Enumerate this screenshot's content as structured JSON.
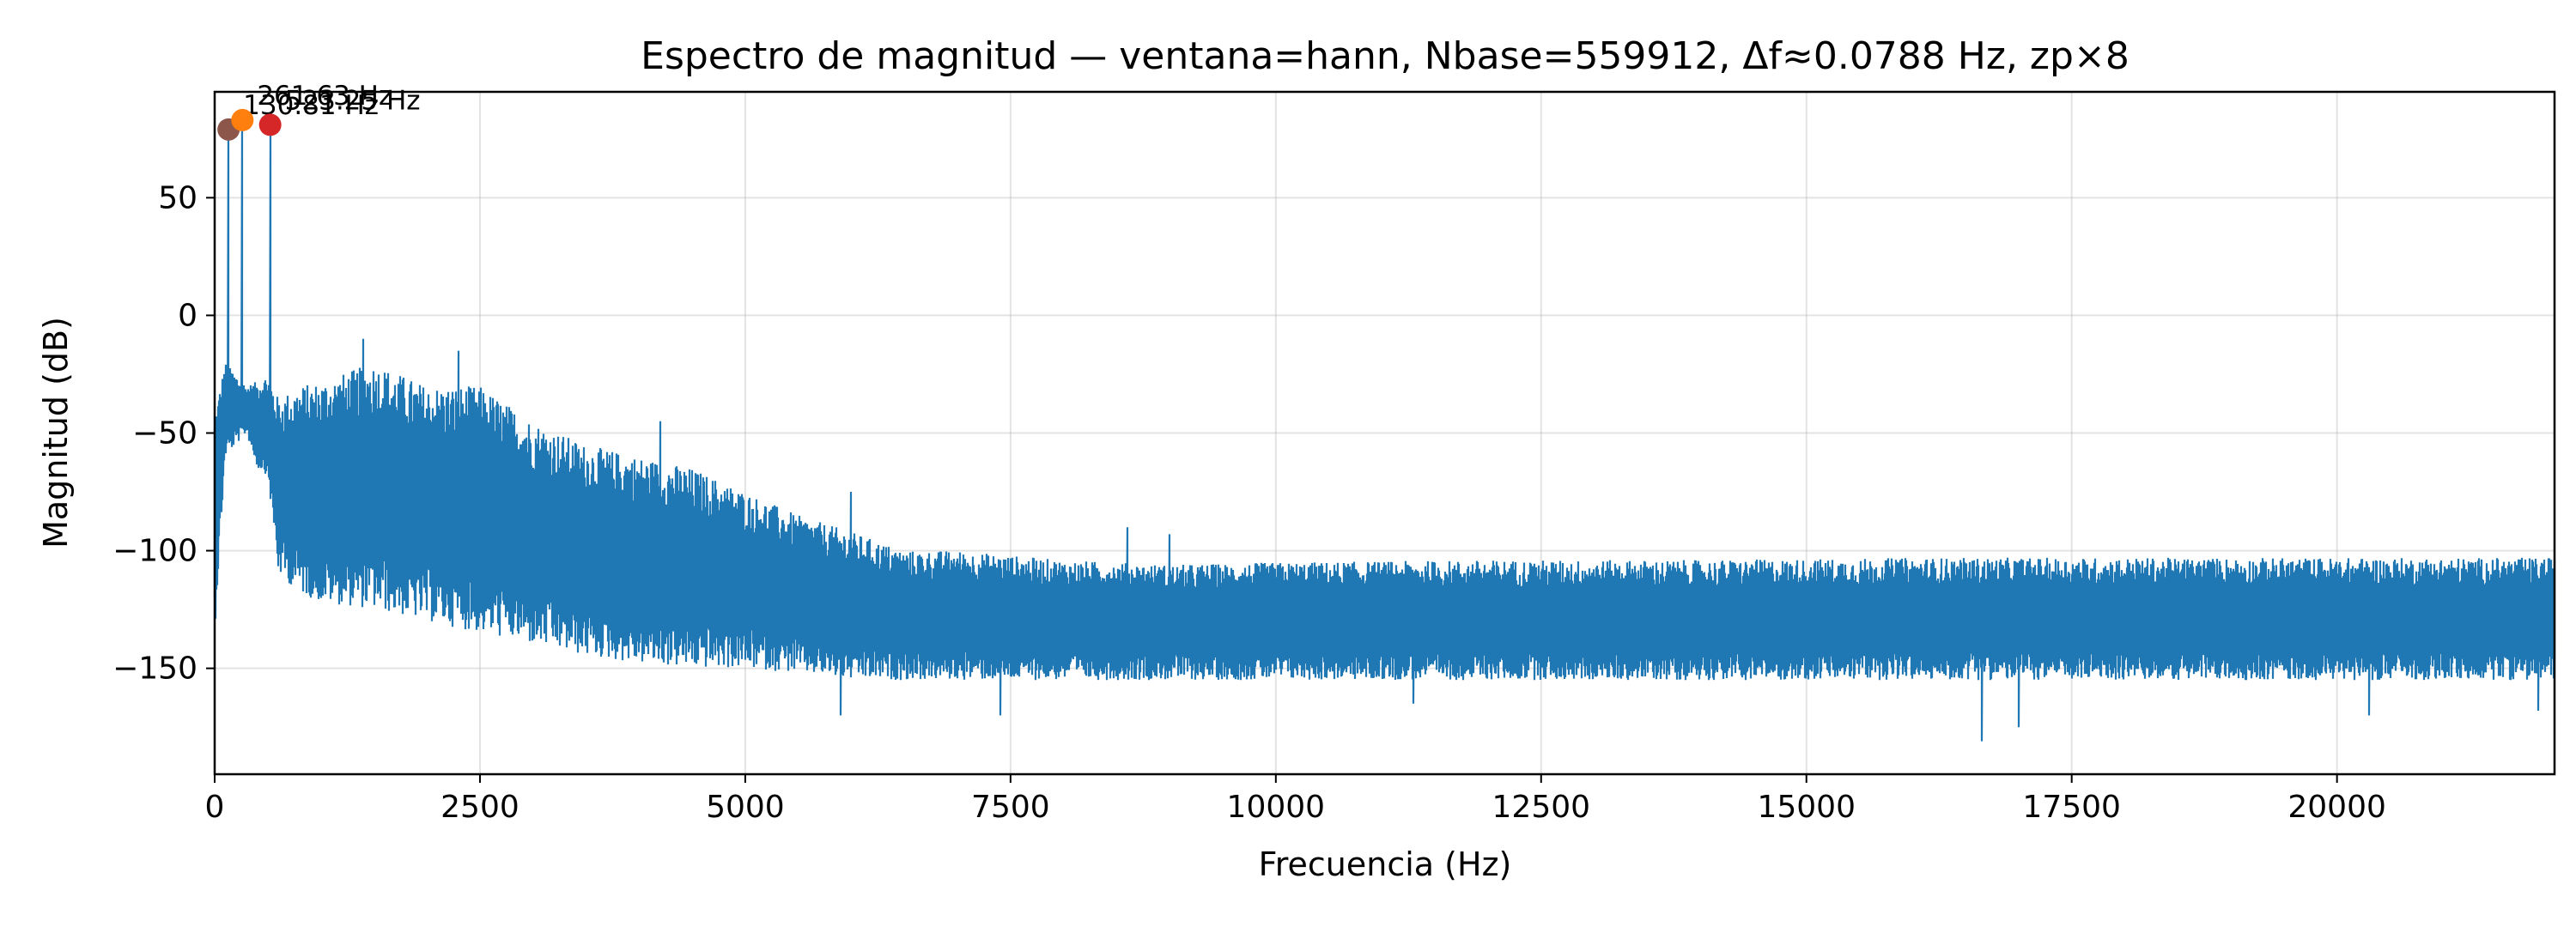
{
  "chart_data": {
    "type": "line",
    "title": "Espectro de magnitud — ventana=hann, Nbase=559912, Δf≈0.0788 Hz, zp×8",
    "xlabel": "Frecuencia (Hz)",
    "ylabel": "Magnitud (dB)",
    "xlim": [
      0,
      22050
    ],
    "ylim": [
      -195,
      95
    ],
    "grid": true,
    "x_ticks": [
      0,
      2500,
      5000,
      7500,
      10000,
      12500,
      15000,
      17500,
      20000
    ],
    "x_tick_labels": [
      "0",
      "2500",
      "5000",
      "7500",
      "10000",
      "12500",
      "15000",
      "17500",
      "20000"
    ],
    "y_ticks": [
      -150,
      -100,
      -50,
      0,
      50
    ],
    "y_tick_labels": [
      "−150",
      "−100",
      "−50",
      "0",
      "50"
    ],
    "series": [
      {
        "color": "#1f77b4",
        "envelope": {
          "x": [
            0,
            100,
            200,
            300,
            400,
            500,
            600,
            800,
            1000,
            1500,
            2000,
            2500,
            3000,
            3500,
            4000,
            4500,
            5000,
            5500,
            6000,
            6500,
            7000,
            7500,
            8000,
            9000,
            10000,
            12000,
            14000,
            16000,
            18000,
            20000,
            22050
          ],
          "upper": [
            -40,
            -20,
            -25,
            -30,
            -28,
            -25,
            -35,
            -30,
            -28,
            -20,
            -30,
            -30,
            -45,
            -55,
            -60,
            -65,
            -75,
            -85,
            -92,
            -100,
            -100,
            -102,
            -104,
            -106,
            -105,
            -104,
            -104,
            -103,
            -103,
            -103,
            -103
          ],
          "lower": [
            -135,
            -60,
            -55,
            -50,
            -65,
            -68,
            -110,
            -118,
            -122,
            -125,
            -130,
            -135,
            -140,
            -145,
            -148,
            -150,
            -150,
            -152,
            -155,
            -155,
            -155,
            -155,
            -155,
            -155,
            -155,
            -155,
            -155,
            -155,
            -155,
            -155,
            -155
          ]
        },
        "peaks": [
          {
            "x": 130.81,
            "y": 79
          },
          {
            "x": 261.63,
            "y": 83
          },
          {
            "x": 523.25,
            "y": 81
          }
        ],
        "dips": [
          {
            "x": 5900,
            "y": -170
          },
          {
            "x": 7400,
            "y": -170
          },
          {
            "x": 11300,
            "y": -165
          },
          {
            "x": 16650,
            "y": -181
          },
          {
            "x": 17000,
            "y": -175
          },
          {
            "x": 20300,
            "y": -170
          },
          {
            "x": 21900,
            "y": -168
          }
        ],
        "spikes": [
          {
            "x": 1400,
            "y": -10
          },
          {
            "x": 2300,
            "y": -15
          },
          {
            "x": 4200,
            "y": -45
          },
          {
            "x": 6000,
            "y": -75
          },
          {
            "x": 8600,
            "y": -90
          },
          {
            "x": 9000,
            "y": -93
          }
        ]
      }
    ],
    "markers": [
      {
        "x": 130.81,
        "y": 79,
        "color": "#8c564b",
        "label": "130.81 Hz"
      },
      {
        "x": 261.63,
        "y": 83,
        "color": "#ff7f0e",
        "label": "261.63 Hz"
      },
      {
        "x": 523.25,
        "y": 81,
        "color": "#d62728",
        "label": "523.25 Hz"
      }
    ]
  }
}
